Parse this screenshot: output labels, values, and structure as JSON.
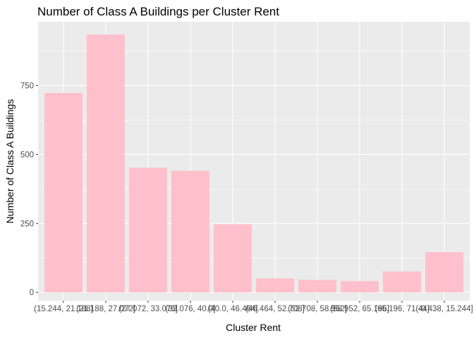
{
  "chart_data": {
    "type": "bar",
    "title": "Number of Class A Buildings per Cluster Rent",
    "xlabel": "Cluster Rent",
    "ylabel": "Number of Class A Buildings",
    "categories": [
      "(15.244, 21.188]",
      "(21.188, 27.072]",
      "(27.072, 33.076]",
      "(33.076, 40.0]",
      "(40.0, 46.464]",
      "(46.464, 52.708]",
      "(52.708, 58.952]",
      "(58.952, 65.196]",
      "(65.196, 71.44]",
      "(-0.438, 15.244]"
    ],
    "values": [
      723,
      935,
      452,
      441,
      247,
      51,
      45,
      41,
      76,
      146
    ],
    "ylim": [
      -30,
      981
    ],
    "yticks": [
      0,
      250,
      500,
      750
    ],
    "grid": true,
    "colors": {
      "bar": "#FFC0CB",
      "panel": "#EBEBEB",
      "grid_major": "#FFFFFF"
    }
  }
}
